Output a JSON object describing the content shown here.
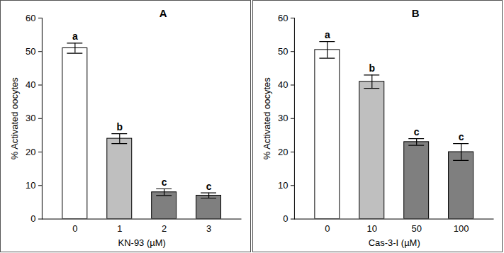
{
  "chart_data": [
    {
      "type": "bar",
      "title": "A",
      "categories": [
        "0",
        "1",
        "2",
        "3"
      ],
      "values": [
        51,
        24,
        8,
        7
      ],
      "errors": [
        1.5,
        1.5,
        1,
        0.8
      ],
      "annotations": [
        "a",
        "b",
        "c",
        "c"
      ],
      "colors": [
        "#ffffff",
        "#bfbfbf",
        "#7f7f7f",
        "#7f7f7f"
      ],
      "x_label": "KN-93 (µM)",
      "y_label": "% Activated oocytes",
      "ylim": [
        0,
        60
      ],
      "yticks": [
        0,
        10,
        20,
        30,
        40,
        50,
        60
      ]
    },
    {
      "type": "bar",
      "title": "B",
      "categories": [
        "0",
        "10",
        "50",
        "100"
      ],
      "values": [
        50.5,
        41,
        23,
        20
      ],
      "errors": [
        2.5,
        2,
        1,
        2.5
      ],
      "annotations": [
        "a",
        "b",
        "c",
        "c"
      ],
      "colors": [
        "#ffffff",
        "#bfbfbf",
        "#7f7f7f",
        "#7f7f7f"
      ],
      "x_label": "Cas-3-I (µM)",
      "y_label": "% Activated oocytes",
      "ylim": [
        0,
        60
      ],
      "yticks": [
        0,
        10,
        20,
        30,
        40,
        50,
        60
      ]
    }
  ]
}
